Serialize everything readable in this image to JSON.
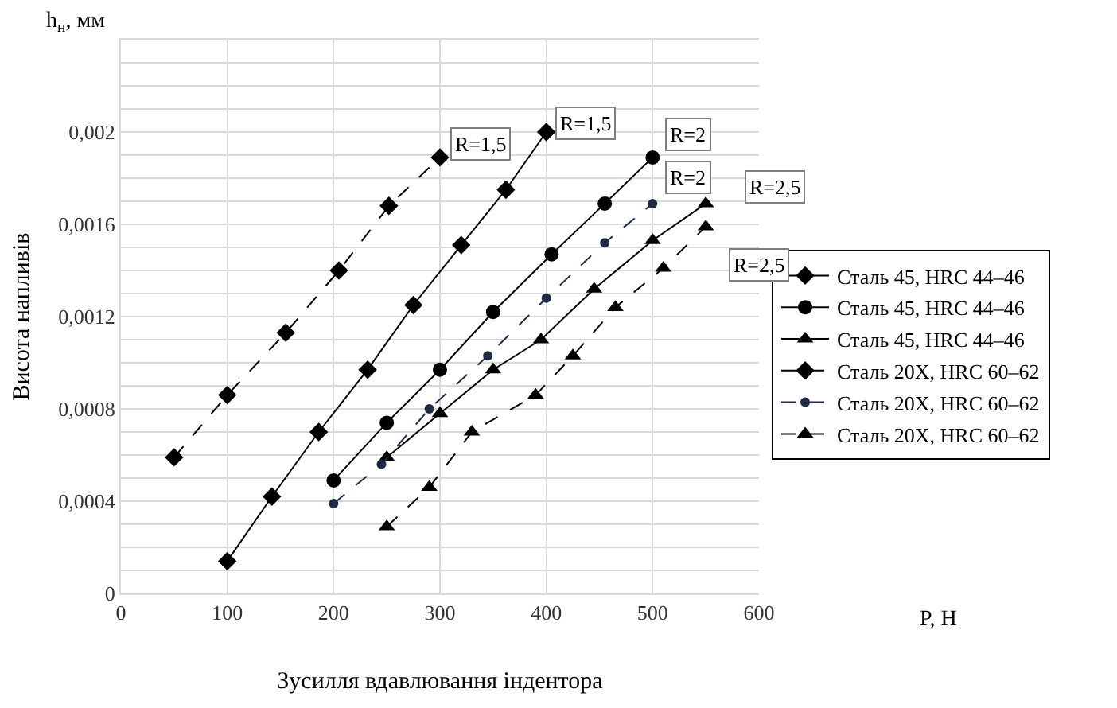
{
  "chart_data": {
    "type": "line",
    "xlabel": "Зусилля вдавлювання індентора",
    "ylabel": "Висота напливів",
    "xlim": [
      0,
      600
    ],
    "xticks": [
      0,
      100,
      200,
      300,
      400,
      500,
      600
    ],
    "ylim": [
      0,
      0.0024
    ],
    "yticks": [
      0,
      {
        "value": 0.0001,
        "label": null
      },
      {
        "value": 0.0002,
        "label": null
      },
      {
        "value": 0.0003,
        "label": null
      },
      {
        "value": 0.0004,
        "label": "0,0004"
      },
      {
        "value": 0.0005,
        "label": null
      },
      {
        "value": 0.0006,
        "label": null
      },
      {
        "value": 0.0007,
        "label": null
      },
      {
        "value": 0.0008,
        "label": "0,0008"
      },
      {
        "value": 0.0009,
        "label": null
      },
      {
        "value": 0.001,
        "label": null
      },
      {
        "value": 0.0011,
        "label": null
      },
      {
        "value": 0.0012,
        "label": "0,0012"
      },
      {
        "value": 0.0013,
        "label": null
      },
      {
        "value": 0.0014,
        "label": null
      },
      {
        "value": 0.0015,
        "label": null
      },
      {
        "value": 0.0016,
        "label": "0,0016"
      },
      {
        "value": 0.0017,
        "label": null
      },
      {
        "value": 0.0018,
        "label": null
      },
      {
        "value": 0.0019,
        "label": null
      },
      {
        "value": 0.002,
        "label": "0,002"
      },
      {
        "value": 0.0021,
        "label": null
      },
      {
        "value": 0.0022,
        "label": null
      },
      {
        "value": 0.0023,
        "label": null
      },
      {
        "value": 0.0024,
        "label": null
      }
    ],
    "grid": true,
    "legend": "right",
    "series": [
      {
        "name": "Сталь 45, HRC 44–46",
        "color": "#000000",
        "marker": "diamond",
        "line_style": "solid",
        "x": [
          100,
          142,
          186,
          232,
          275,
          320,
          362,
          400
        ],
        "values": [
          0.00014,
          0.00042,
          0.0007,
          0.00097,
          0.00125,
          0.00151,
          0.00175,
          0.002
        ]
      },
      {
        "name": "Сталь 45, HRC 44–46",
        "color": "#000000",
        "marker": "circle",
        "line_style": "solid",
        "x": [
          200,
          250,
          300,
          350,
          405,
          455,
          500
        ],
        "values": [
          0.00049,
          0.00074,
          0.00097,
          0.00122,
          0.00147,
          0.00169,
          0.00189
        ]
      },
      {
        "name": "Сталь 45, HRC 44–46",
        "color": "#000000",
        "marker": "triangle",
        "line_style": "solid",
        "x": [
          250,
          300,
          350,
          395,
          445,
          500,
          550
        ],
        "values": [
          0.00059,
          0.00078,
          0.00097,
          0.0011,
          0.00132,
          0.00153,
          0.00169
        ]
      },
      {
        "name": "Сталь 20Х, HRC 60–62",
        "color": "#000000",
        "marker": "diamond",
        "line_style": "dashed",
        "x": [
          50,
          100,
          155,
          205,
          252,
          300
        ],
        "values": [
          0.00059,
          0.00086,
          0.00113,
          0.0014,
          0.00168,
          0.00189
        ]
      },
      {
        "name": "Сталь 20Х, HRC 60–62",
        "color": "#1f2a44",
        "marker": "circle",
        "line_style": "dashed",
        "x": [
          200,
          245,
          290,
          345,
          400,
          455,
          500
        ],
        "values": [
          0.00039,
          0.00056,
          0.0008,
          0.00103,
          0.00128,
          0.00152,
          0.00169
        ]
      },
      {
        "name": "Сталь 20Х, HRC 60–62",
        "color": "#000000",
        "marker": "triangle",
        "line_style": "dashed",
        "x": [
          250,
          290,
          330,
          390,
          425,
          465,
          510,
          550
        ],
        "values": [
          0.00029,
          0.00046,
          0.0007,
          0.00086,
          0.00103,
          0.00124,
          0.00141,
          0.00159
        ]
      }
    ],
    "annotations": [
      "h$_{н}$, мм",
      "P, H",
      {
        "text": "R=1,5",
        "x": 300,
        "y": 0.00189
      },
      {
        "text": "R=1,5",
        "x": 400,
        "y": 0.002
      },
      {
        "text": "R=2",
        "x": 500,
        "y": 0.00189
      },
      {
        "text": "R=2",
        "x": 500,
        "y": 0.00169
      },
      {
        "text": "R=2,5",
        "x": 550,
        "y": 0.00169
      },
      {
        "text": "R=2,5",
        "x": 550,
        "y": 0.00159
      }
    ]
  }
}
